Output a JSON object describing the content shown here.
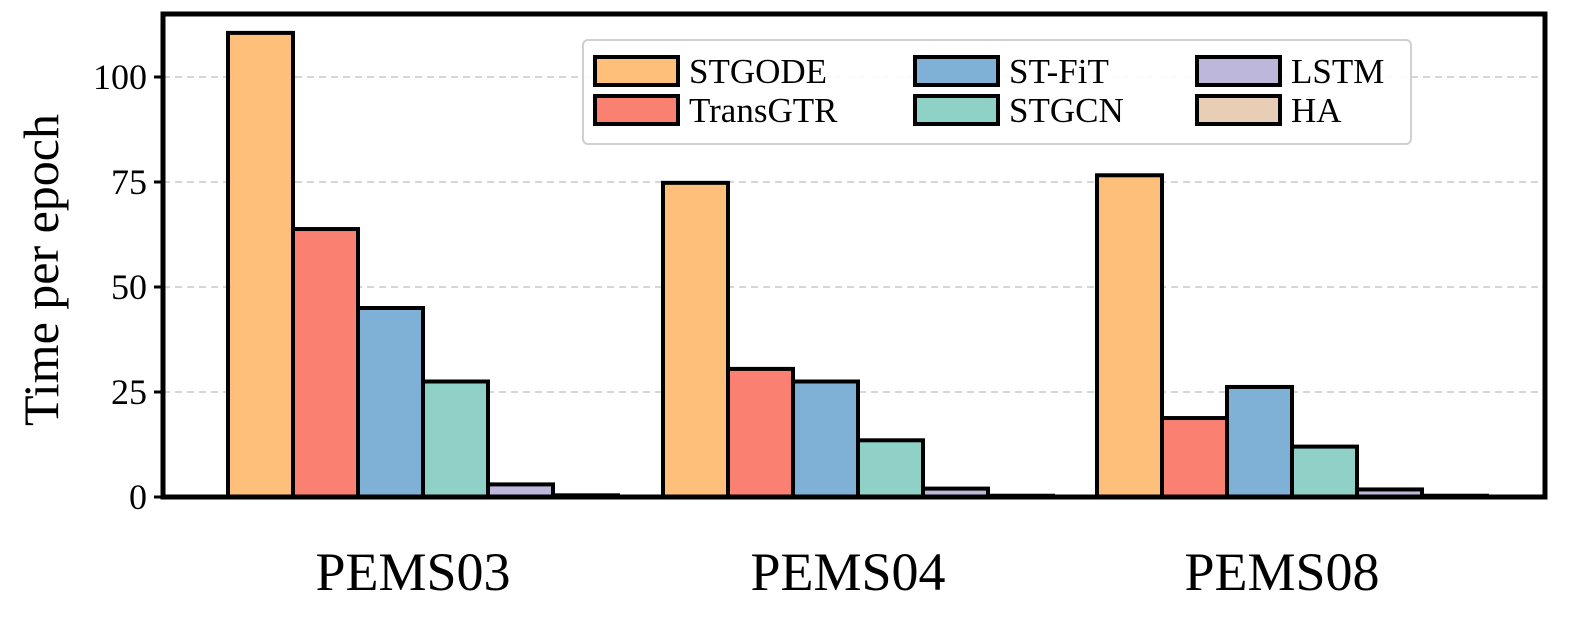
{
  "chart_data": {
    "type": "bar",
    "title": "",
    "xlabel": "",
    "ylabel": "Time per epoch",
    "categories": [
      "PEMS03",
      "PEMS04",
      "PEMS08"
    ],
    "ylim": [
      0,
      115
    ],
    "yticks": [
      0,
      25,
      50,
      75,
      100
    ],
    "grid": "horizontal dashed",
    "legend": {
      "placement": "top-right",
      "columns": 3
    },
    "series": [
      {
        "name": "STGODE",
        "color": "#FDBF7A",
        "values": [
          110.5,
          74.8,
          76.6
        ]
      },
      {
        "name": "TransGTR",
        "color": "#FA8072",
        "values": [
          63.8,
          30.5,
          18.8
        ]
      },
      {
        "name": "ST-FiT",
        "color": "#7FB0D5",
        "values": [
          45.0,
          27.5,
          26.2
        ]
      },
      {
        "name": "STGCN",
        "color": "#8FD0C7",
        "values": [
          27.5,
          13.5,
          12.0
        ]
      },
      {
        "name": "LSTM",
        "color": "#BDB7DC",
        "values": [
          3.0,
          2.0,
          1.8
        ]
      },
      {
        "name": "HA",
        "color": "#E8CEB4",
        "values": [
          0.4,
          0.3,
          0.3
        ]
      }
    ]
  }
}
